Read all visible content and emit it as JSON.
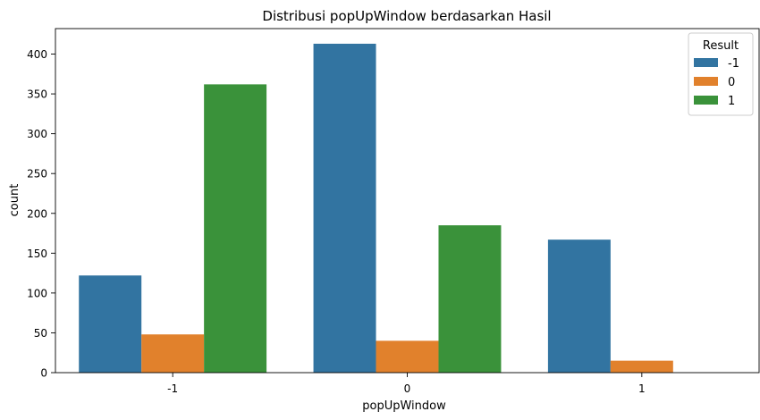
{
  "chart_data": {
    "type": "bar",
    "title": "Distribusi popUpWindow berdasarkan Hasil",
    "xlabel": "popUpWindow",
    "ylabel": "count",
    "categories": [
      "-1",
      "0",
      "1"
    ],
    "series": [
      {
        "name": "-1",
        "color": "#3274a1",
        "values": [
          122,
          413,
          167
        ]
      },
      {
        "name": "0",
        "color": "#e1812c",
        "values": [
          48,
          40,
          15
        ]
      },
      {
        "name": "1",
        "color": "#3a923a",
        "values": [
          362,
          185,
          0
        ]
      }
    ],
    "ylim": [
      0,
      432
    ],
    "yticks": [
      0,
      50,
      100,
      150,
      200,
      250,
      300,
      350,
      400
    ],
    "legend": {
      "title": "Result",
      "placement": "top-right"
    },
    "grid": false
  }
}
